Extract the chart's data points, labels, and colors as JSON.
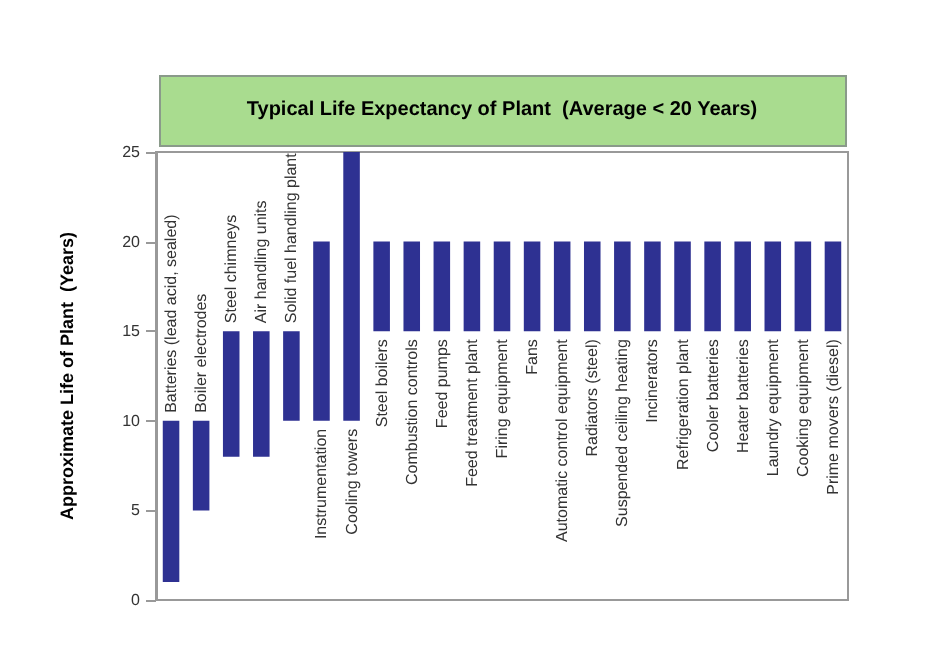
{
  "chart_data": {
    "type": "bar",
    "title": "Typical Life Expectancy of Plant  (Average < 20 Years)",
    "ylabel": "Approximate Life of Plant  (Years)",
    "categories": [
      "Batteries (lead acid, sealed)",
      "Boiler electrodes",
      "Steel chimneys",
      "Air handling units",
      "Solid fuel handling plant",
      "Instrumentation",
      "Cooling towers",
      "Steel boilers",
      "Combustion controls",
      "Feed pumps",
      "Feed treatment plant",
      "Firing equipment",
      "Fans",
      "Automatic control equipment",
      "Radiators (steel)",
      "Suspended ceiling heating",
      "Incinerators",
      "Refrigeration plant",
      "Cooler batteries",
      "Heater batteries",
      "Laundry equipment",
      "Cooking equipment",
      "Prime movers (diesel)"
    ],
    "base": [
      1,
      5,
      8,
      8,
      10,
      10,
      10,
      15,
      15,
      15,
      15,
      15,
      15,
      15,
      15,
      15,
      15,
      15,
      15,
      15,
      15,
      15,
      15
    ],
    "values": [
      9,
      5,
      7,
      7,
      5,
      10,
      15,
      5,
      5,
      5,
      5,
      5,
      5,
      5,
      5,
      5,
      5,
      5,
      5,
      5,
      5,
      5,
      5
    ],
    "color": "#2e3192",
    "ylim": [
      0,
      25
    ],
    "yticks": [
      0,
      5,
      10,
      15,
      20,
      25
    ]
  }
}
